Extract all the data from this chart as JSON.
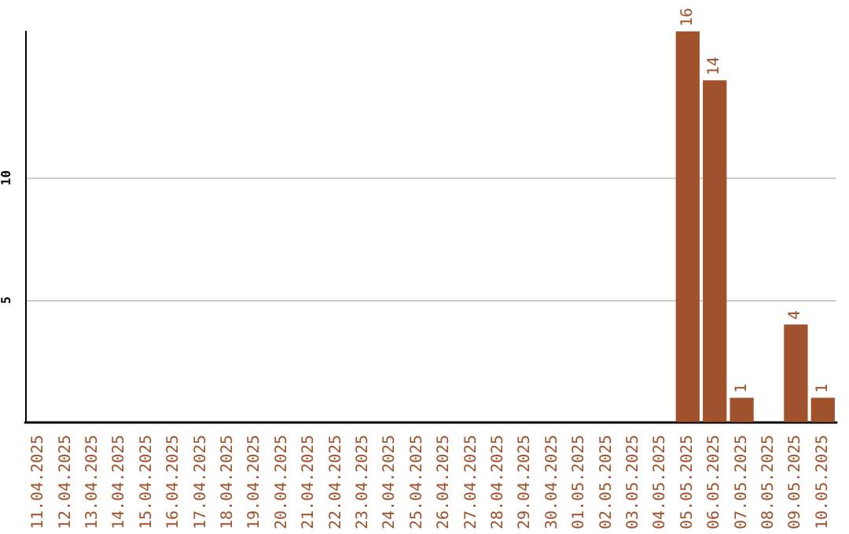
{
  "chart_data": {
    "type": "bar",
    "categories": [
      "11.04.2025",
      "12.04.2025",
      "13.04.2025",
      "14.04.2025",
      "15.04.2025",
      "16.04.2025",
      "17.04.2025",
      "18.04.2025",
      "19.04.2025",
      "20.04.2025",
      "21.04.2025",
      "22.04.2025",
      "23.04.2025",
      "24.04.2025",
      "25.04.2025",
      "26.04.2025",
      "27.04.2025",
      "28.04.2025",
      "29.04.2025",
      "30.04.2025",
      "01.05.2025",
      "02.05.2025",
      "03.05.2025",
      "04.05.2025",
      "05.05.2025",
      "06.05.2025",
      "07.05.2025",
      "08.05.2025",
      "09.05.2025",
      "10.05.2025"
    ],
    "values": [
      0,
      0,
      0,
      0,
      0,
      0,
      0,
      0,
      0,
      0,
      0,
      0,
      0,
      0,
      0,
      0,
      0,
      0,
      0,
      0,
      0,
      0,
      0,
      0,
      16,
      14,
      1,
      0,
      4,
      1
    ],
    "value_labels": [
      null,
      null,
      null,
      null,
      null,
      null,
      null,
      null,
      null,
      null,
      null,
      null,
      null,
      null,
      null,
      null,
      null,
      null,
      null,
      null,
      null,
      null,
      null,
      null,
      "16",
      "14",
      "1",
      null,
      "4",
      "1"
    ],
    "color": "#a0522d",
    "ylim": [
      0,
      16
    ],
    "yticks": [
      5,
      10
    ],
    "grid": "y"
  }
}
